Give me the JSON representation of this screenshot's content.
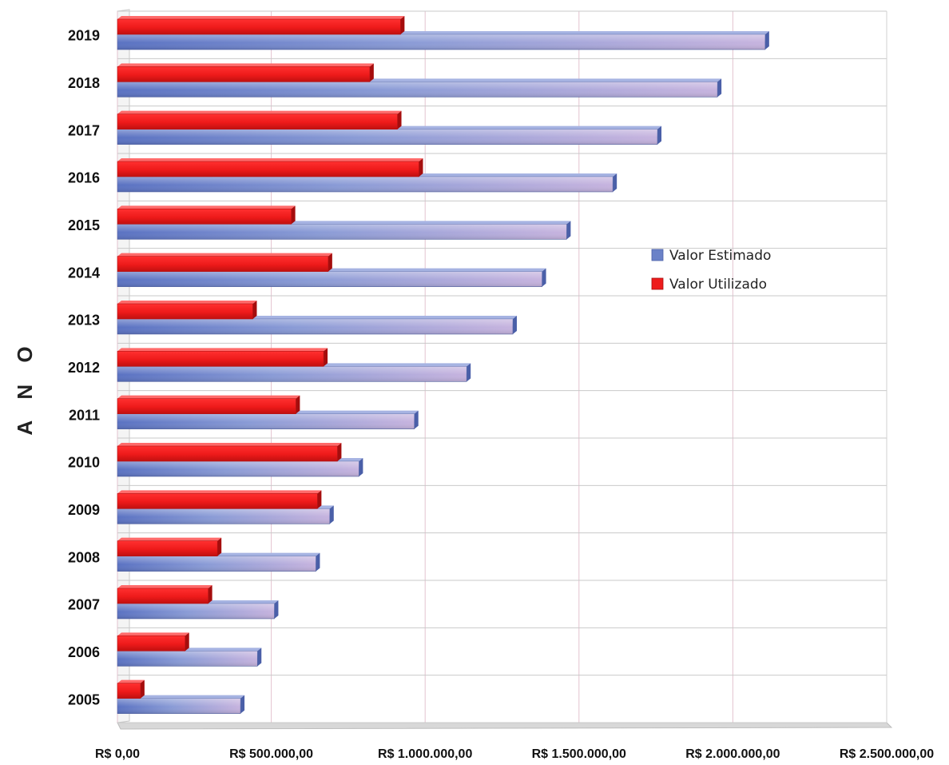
{
  "chart_data": {
    "type": "bar",
    "orientation": "horizontal",
    "style": "3d",
    "ylabel": "A N O",
    "xlabel": "",
    "xlim": [
      0,
      2500000
    ],
    "xticks": [
      0,
      500000,
      1000000,
      1500000,
      2000000,
      2500000
    ],
    "xtick_labels": [
      "R$ 0,00",
      "R$ 500.000,00",
      "R$ 1.000.000,00",
      "R$ 1.500.000,00",
      "R$ 2.000.000,00",
      "R$ 2.500.000,00"
    ],
    "categories": [
      "2005",
      "2006",
      "2007",
      "2008",
      "2009",
      "2010",
      "2011",
      "2012",
      "2013",
      "2014",
      "2015",
      "2016",
      "2017",
      "2018",
      "2019"
    ],
    "series": [
      {
        "name": "Valor Estimado",
        "color": "#6b82c8",
        "values": [
          400000,
          455000,
          510000,
          645000,
          690000,
          785000,
          965000,
          1135000,
          1285000,
          1380000,
          1460000,
          1610000,
          1755000,
          1950000,
          2105000
        ]
      },
      {
        "name": "Valor Utilizado",
        "color": "#ee1c1c",
        "values": [
          75000,
          220000,
          295000,
          325000,
          650000,
          715000,
          580000,
          670000,
          440000,
          685000,
          565000,
          980000,
          910000,
          820000,
          920000
        ]
      }
    ],
    "legend": {
      "position": "right",
      "entries": [
        "Valor Estimado",
        "Valor Utilizado"
      ]
    },
    "grid": true
  }
}
